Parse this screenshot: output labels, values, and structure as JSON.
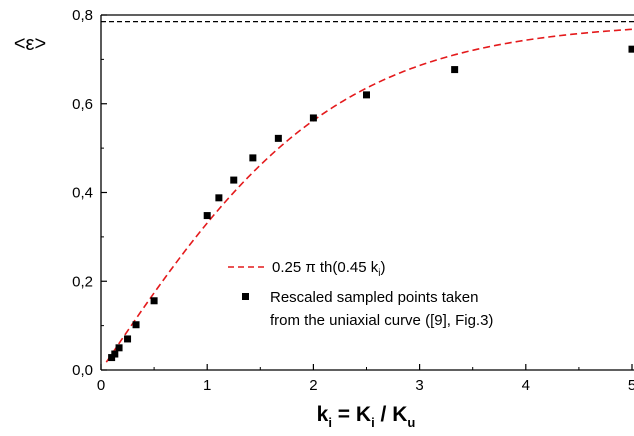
{
  "chart_data": {
    "type": "scatter",
    "title": "",
    "xlabel": {
      "main": "k",
      "sub": "i",
      "mid": " = K",
      "sub2": "i",
      "mid2": " / K",
      "sub3": "u"
    },
    "ylabel": "<ε>",
    "xlim": [
      0,
      5
    ],
    "ylim": [
      0,
      0.8
    ],
    "x_ticks": [
      "0",
      "1",
      "2",
      "3",
      "4",
      "5"
    ],
    "y_ticks": [
      "0,0",
      "0,2",
      "0,4",
      "0,6",
      "0,8"
    ],
    "y_tick_values": [
      0,
      0.2,
      0.4,
      0.6,
      0.8
    ],
    "x_tick_values": [
      0,
      1,
      2,
      3,
      4,
      5
    ],
    "reference_line": {
      "y": 0.785,
      "style": "dashed",
      "color": "#000000"
    },
    "grid": false,
    "legend_position": "center-right",
    "series": [
      {
        "type": "line",
        "style": "dashed",
        "color": "#e41a1c",
        "legend": {
          "text": "0.25 π th(0.45 k",
          "sub": "i",
          "close": ")"
        },
        "function": {
          "amplitude": 0.785,
          "rate": 0.45
        },
        "x_range": [
          0.05,
          5
        ]
      },
      {
        "type": "scatter",
        "marker": "square",
        "color": "#000000",
        "legend_lines": [
          "Rescaled sampled points taken",
          "from the uniaxial curve ([9], Fig.3)"
        ],
        "x": [
          0.1,
          0.13,
          0.17,
          0.25,
          0.33,
          0.5,
          1.0,
          1.11,
          1.25,
          1.43,
          1.67,
          2.0,
          2.5,
          3.33,
          5.0
        ],
        "y": [
          0.028,
          0.036,
          0.05,
          0.07,
          0.102,
          0.156,
          0.348,
          0.388,
          0.428,
          0.478,
          0.522,
          0.568,
          0.62,
          0.677,
          0.723
        ]
      }
    ]
  }
}
